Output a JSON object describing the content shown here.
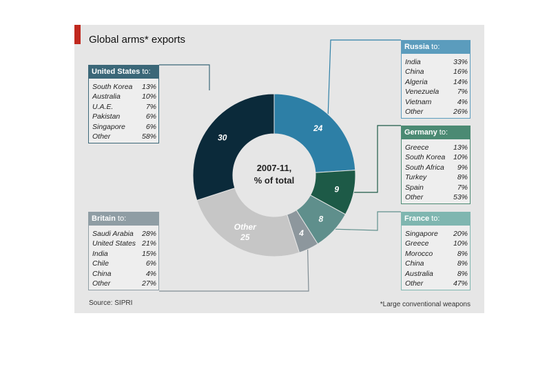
{
  "title": "Global arms* exports",
  "source": "Source: SIPRI",
  "footnote": "*Large conventional weapons",
  "chart_data": {
    "type": "pie",
    "title": "Global arms* exports",
    "center_label_line1": "2007-11,",
    "center_label_line2": "% of total",
    "slices": [
      {
        "label": "24",
        "value": 24,
        "color": "#2d7fa6"
      },
      {
        "label": "9",
        "value": 9,
        "color": "#1d5a47"
      },
      {
        "label": "8",
        "value": 8,
        "color": "#5f8f8c"
      },
      {
        "label": "4",
        "value": 4,
        "color": "#8d979d"
      },
      {
        "name": "Other",
        "label": "25",
        "value": 25,
        "color": "#c6c6c6"
      },
      {
        "label": "30",
        "value": 30,
        "color": "#0b2a3a"
      }
    ],
    "breakdowns": [
      {
        "id": "us",
        "country": "United States",
        "suffix": "to:",
        "rows": [
          [
            "South Korea",
            "13%"
          ],
          [
            "Australia",
            "10%"
          ],
          [
            "U.A.E.",
            "7%"
          ],
          [
            "Pakistan",
            "6%"
          ],
          [
            "Singapore",
            "6%"
          ],
          [
            "Other",
            "58%"
          ]
        ]
      },
      {
        "id": "ru",
        "country": "Russia",
        "suffix": "to:",
        "rows": [
          [
            "India",
            "33%"
          ],
          [
            "China",
            "16%"
          ],
          [
            "Algeria",
            "14%"
          ],
          [
            "Venezuela",
            "7%"
          ],
          [
            "Vietnam",
            "4%"
          ],
          [
            "Other",
            "26%"
          ]
        ]
      },
      {
        "id": "de",
        "country": "Germany",
        "suffix": "to:",
        "rows": [
          [
            "Greece",
            "13%"
          ],
          [
            "South Korea",
            "10%"
          ],
          [
            "South Africa",
            "9%"
          ],
          [
            "Turkey",
            "8%"
          ],
          [
            "Spain",
            "7%"
          ],
          [
            "Other",
            "53%"
          ]
        ]
      },
      {
        "id": "fr",
        "country": "France",
        "suffix": "to:",
        "rows": [
          [
            "Singapore",
            "20%"
          ],
          [
            "Greece",
            "10%"
          ],
          [
            "Morocco",
            "8%"
          ],
          [
            "China",
            "8%"
          ],
          [
            "Australia",
            "8%"
          ],
          [
            "Other",
            "47%"
          ]
        ]
      },
      {
        "id": "uk",
        "country": "Britain",
        "suffix": "to:",
        "rows": [
          [
            "Saudi Arabia",
            "28%"
          ],
          [
            "United States",
            "21%"
          ],
          [
            "India",
            "15%"
          ],
          [
            "Chile",
            "6%"
          ],
          [
            "China",
            "4%"
          ],
          [
            "Other",
            "27%"
          ]
        ]
      }
    ]
  }
}
